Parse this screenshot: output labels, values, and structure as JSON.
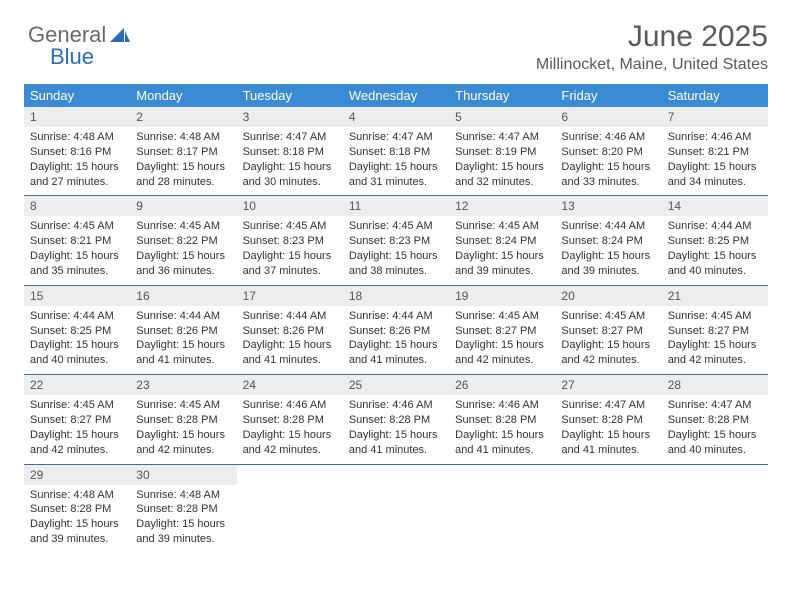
{
  "logo": {
    "text1": "General",
    "text2": "Blue"
  },
  "header": {
    "title": "June 2025",
    "subtitle": "Millinocket, Maine, United States"
  },
  "colors": {
    "header_bg": "#3b8bd4",
    "header_text": "#ffffff",
    "daynum_bg": "#ededed",
    "week_border": "#3b6fa0",
    "logo_gray": "#6a6a6a",
    "logo_blue": "#2a6db8"
  },
  "daysOfWeek": [
    "Sunday",
    "Monday",
    "Tuesday",
    "Wednesday",
    "Thursday",
    "Friday",
    "Saturday"
  ],
  "weeks": [
    [
      {
        "n": "1",
        "sunrise": "4:48 AM",
        "sunset": "8:16 PM",
        "daylight": "15 hours and 27 minutes."
      },
      {
        "n": "2",
        "sunrise": "4:48 AM",
        "sunset": "8:17 PM",
        "daylight": "15 hours and 28 minutes."
      },
      {
        "n": "3",
        "sunrise": "4:47 AM",
        "sunset": "8:18 PM",
        "daylight": "15 hours and 30 minutes."
      },
      {
        "n": "4",
        "sunrise": "4:47 AM",
        "sunset": "8:18 PM",
        "daylight": "15 hours and 31 minutes."
      },
      {
        "n": "5",
        "sunrise": "4:47 AM",
        "sunset": "8:19 PM",
        "daylight": "15 hours and 32 minutes."
      },
      {
        "n": "6",
        "sunrise": "4:46 AM",
        "sunset": "8:20 PM",
        "daylight": "15 hours and 33 minutes."
      },
      {
        "n": "7",
        "sunrise": "4:46 AM",
        "sunset": "8:21 PM",
        "daylight": "15 hours and 34 minutes."
      }
    ],
    [
      {
        "n": "8",
        "sunrise": "4:45 AM",
        "sunset": "8:21 PM",
        "daylight": "15 hours and 35 minutes."
      },
      {
        "n": "9",
        "sunrise": "4:45 AM",
        "sunset": "8:22 PM",
        "daylight": "15 hours and 36 minutes."
      },
      {
        "n": "10",
        "sunrise": "4:45 AM",
        "sunset": "8:23 PM",
        "daylight": "15 hours and 37 minutes."
      },
      {
        "n": "11",
        "sunrise": "4:45 AM",
        "sunset": "8:23 PM",
        "daylight": "15 hours and 38 minutes."
      },
      {
        "n": "12",
        "sunrise": "4:45 AM",
        "sunset": "8:24 PM",
        "daylight": "15 hours and 39 minutes."
      },
      {
        "n": "13",
        "sunrise": "4:44 AM",
        "sunset": "8:24 PM",
        "daylight": "15 hours and 39 minutes."
      },
      {
        "n": "14",
        "sunrise": "4:44 AM",
        "sunset": "8:25 PM",
        "daylight": "15 hours and 40 minutes."
      }
    ],
    [
      {
        "n": "15",
        "sunrise": "4:44 AM",
        "sunset": "8:25 PM",
        "daylight": "15 hours and 40 minutes."
      },
      {
        "n": "16",
        "sunrise": "4:44 AM",
        "sunset": "8:26 PM",
        "daylight": "15 hours and 41 minutes."
      },
      {
        "n": "17",
        "sunrise": "4:44 AM",
        "sunset": "8:26 PM",
        "daylight": "15 hours and 41 minutes."
      },
      {
        "n": "18",
        "sunrise": "4:44 AM",
        "sunset": "8:26 PM",
        "daylight": "15 hours and 41 minutes."
      },
      {
        "n": "19",
        "sunrise": "4:45 AM",
        "sunset": "8:27 PM",
        "daylight": "15 hours and 42 minutes."
      },
      {
        "n": "20",
        "sunrise": "4:45 AM",
        "sunset": "8:27 PM",
        "daylight": "15 hours and 42 minutes."
      },
      {
        "n": "21",
        "sunrise": "4:45 AM",
        "sunset": "8:27 PM",
        "daylight": "15 hours and 42 minutes."
      }
    ],
    [
      {
        "n": "22",
        "sunrise": "4:45 AM",
        "sunset": "8:27 PM",
        "daylight": "15 hours and 42 minutes."
      },
      {
        "n": "23",
        "sunrise": "4:45 AM",
        "sunset": "8:28 PM",
        "daylight": "15 hours and 42 minutes."
      },
      {
        "n": "24",
        "sunrise": "4:46 AM",
        "sunset": "8:28 PM",
        "daylight": "15 hours and 42 minutes."
      },
      {
        "n": "25",
        "sunrise": "4:46 AM",
        "sunset": "8:28 PM",
        "daylight": "15 hours and 41 minutes."
      },
      {
        "n": "26",
        "sunrise": "4:46 AM",
        "sunset": "8:28 PM",
        "daylight": "15 hours and 41 minutes."
      },
      {
        "n": "27",
        "sunrise": "4:47 AM",
        "sunset": "8:28 PM",
        "daylight": "15 hours and 41 minutes."
      },
      {
        "n": "28",
        "sunrise": "4:47 AM",
        "sunset": "8:28 PM",
        "daylight": "15 hours and 40 minutes."
      }
    ],
    [
      {
        "n": "29",
        "sunrise": "4:48 AM",
        "sunset": "8:28 PM",
        "daylight": "15 hours and 39 minutes."
      },
      {
        "n": "30",
        "sunrise": "4:48 AM",
        "sunset": "8:28 PM",
        "daylight": "15 hours and 39 minutes."
      },
      null,
      null,
      null,
      null,
      null
    ]
  ],
  "labels": {
    "sunrise": "Sunrise:",
    "sunset": "Sunset:",
    "daylight": "Daylight:"
  }
}
